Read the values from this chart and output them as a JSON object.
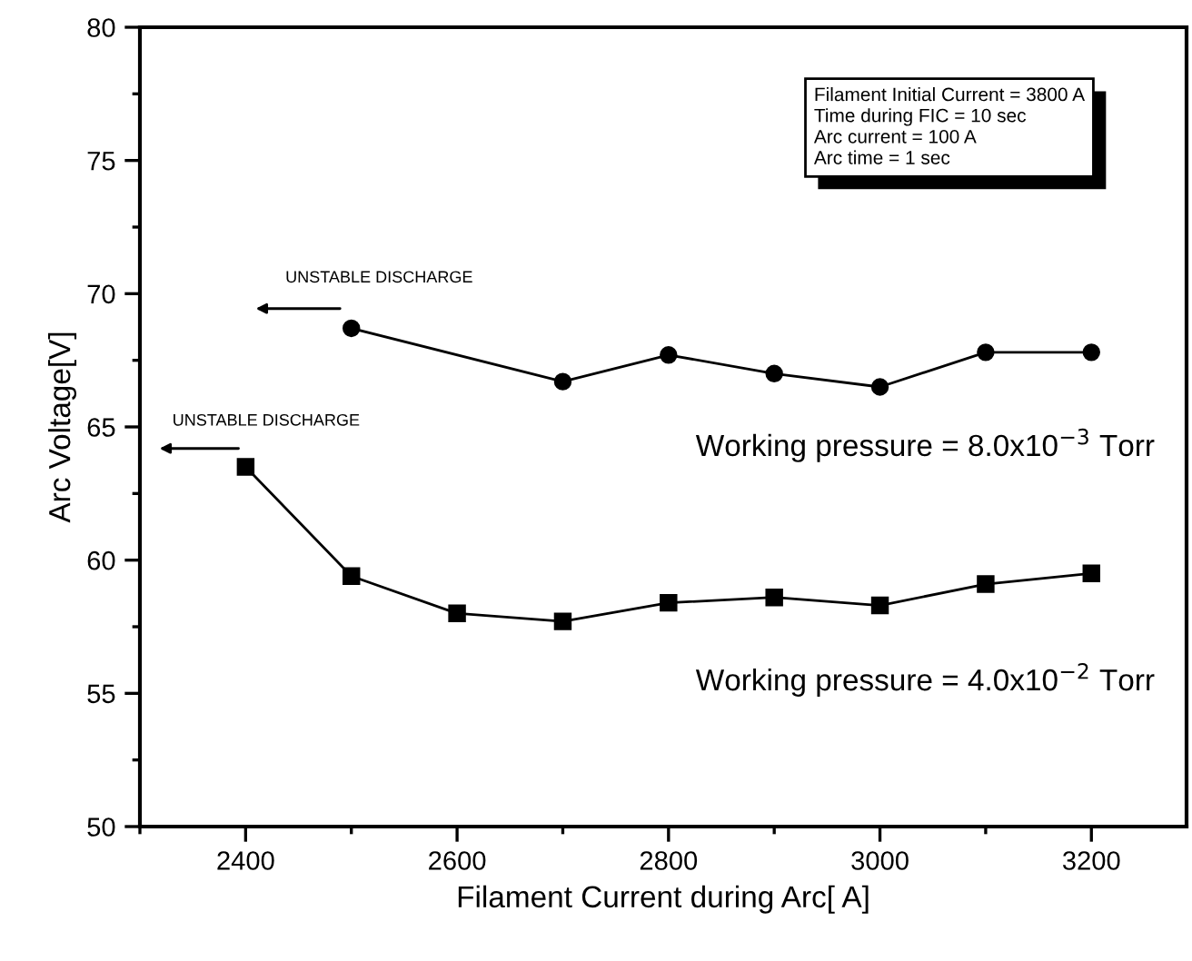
{
  "chart_data": {
    "type": "line",
    "xlabel": "Filament Current during Arc[ A]",
    "ylabel": "Arc Voltage[V]",
    "xlim": [
      2300,
      3290
    ],
    "xticks": [
      2400,
      2600,
      2800,
      3000,
      3200
    ],
    "ylim": [
      50,
      80
    ],
    "yticks": [
      50,
      55,
      60,
      65,
      70,
      75,
      80
    ],
    "grid": false,
    "legend": false,
    "line_style": "solid",
    "series": [
      {
        "name": "Working pressure = 8.0x10$^{−3}$ Torr",
        "color": "#000000",
        "marker": "circle",
        "x": [
          2500,
          2700,
          2800,
          2900,
          3000,
          3100,
          3200
        ],
        "values": [
          68.7,
          66.7,
          67.7,
          67.0,
          66.5,
          67.8,
          67.8
        ]
      },
      {
        "name": "Working pressure = 4.0x10$^{−2}$ Torr",
        "color": "#000000",
        "marker": "square",
        "x": [
          2400,
          2500,
          2600,
          2700,
          2800,
          2900,
          3000,
          3100,
          3200
        ],
        "values": [
          63.5,
          59.4,
          58.0,
          57.7,
          58.4,
          58.6,
          58.3,
          59.1,
          59.5
        ]
      }
    ],
    "annotations": [
      "Filament Initial Current = 3800 A\nTime during FIC = 10 sec\nArc current = 100 A\nArc time = 1 sec",
      "UNSTABLE DISCHARGE",
      "UNSTABLE DISCHARGE"
    ]
  }
}
